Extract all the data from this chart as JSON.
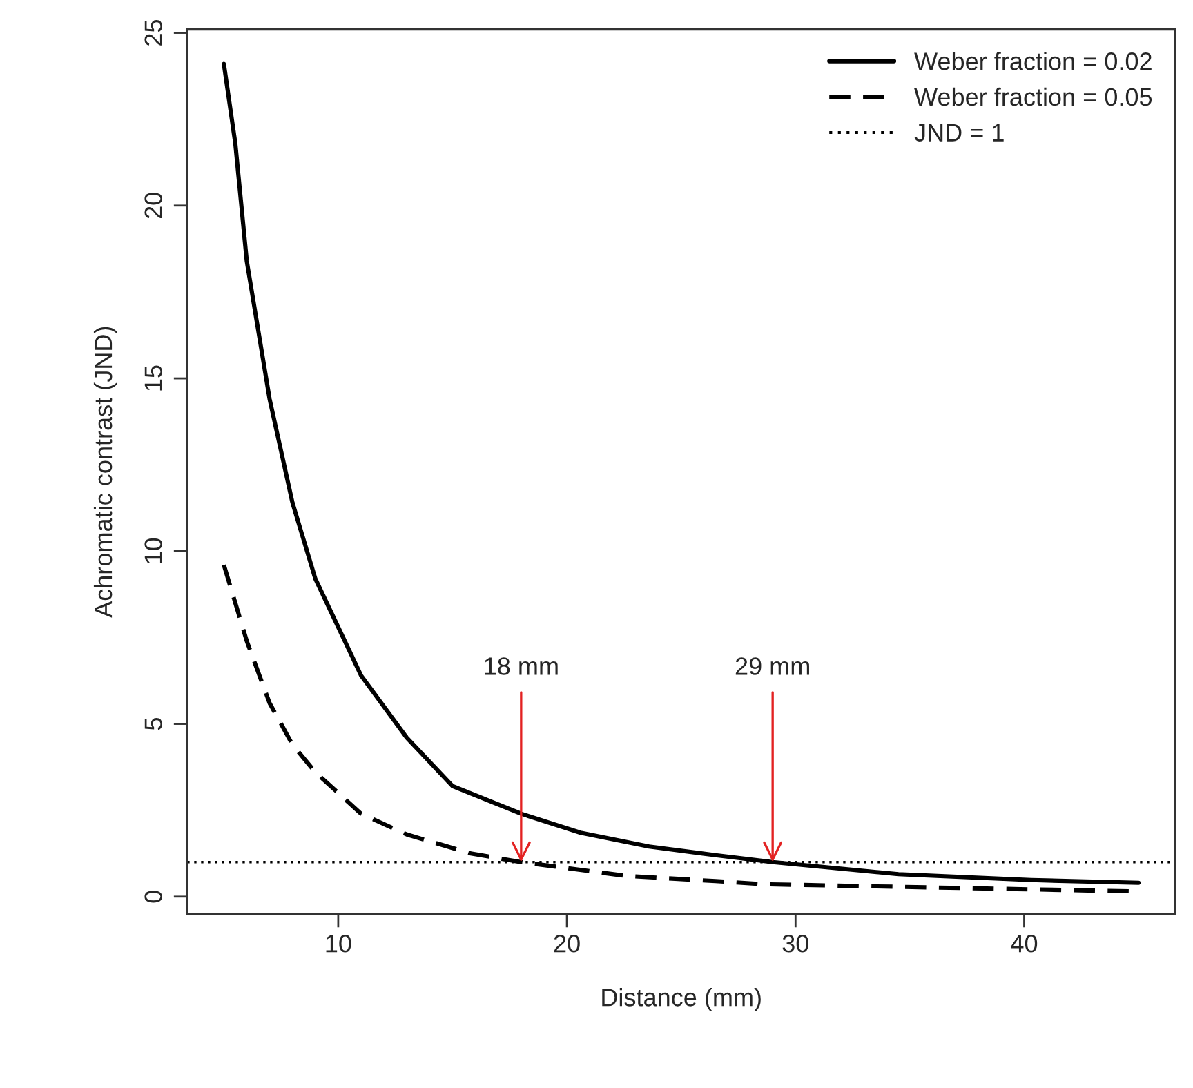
{
  "chart_data": {
    "type": "line",
    "xlabel": "Distance (mm)",
    "ylabel": "Achromatic contrast (JND)",
    "xlim": [
      3.4,
      46.6
    ],
    "xticks": [
      10,
      20,
      30,
      40
    ],
    "ylim": [
      -0.5,
      25.1
    ],
    "yticks": [
      0,
      5,
      10,
      15,
      20,
      25
    ],
    "grid": false,
    "legend": "top right",
    "marker": "none",
    "series": [
      {
        "name": "Weber fraction = 0.02",
        "color": "#000000",
        "line_style": "solid",
        "x": [
          5,
          5.5,
          6,
          7,
          8,
          9,
          10,
          11,
          13,
          15,
          18,
          20.6,
          23.6,
          26.5,
          29,
          34.5,
          40.3,
          45
        ],
        "values": [
          24.1,
          21.8,
          18.4,
          14.4,
          11.4,
          9.2,
          7.8,
          6.4,
          4.6,
          3.2,
          2.4,
          1.85,
          1.45,
          1.2,
          1.0,
          0.65,
          0.48,
          0.4
        ]
      },
      {
        "name": "Weber fraction = 0.05",
        "color": "#000000",
        "line_style": "dashed",
        "x": [
          5,
          6,
          7,
          8,
          9,
          11,
          13,
          15.8,
          18,
          22.6,
          26.5,
          28.6,
          45
        ],
        "values": [
          9.6,
          7.4,
          5.6,
          4.4,
          3.6,
          2.4,
          1.8,
          1.25,
          1.0,
          0.6,
          0.45,
          0.36,
          0.15
        ]
      }
    ],
    "ref_lines": [
      {
        "axis": "y",
        "value": 1,
        "label": "JND = 1",
        "color": "#000000",
        "line_style": "dotted"
      }
    ],
    "annotations": [
      {
        "text": "18 mm",
        "x": 18,
        "y": 1
      },
      {
        "text": "29 mm",
        "x": 29,
        "y": 1
      }
    ]
  }
}
